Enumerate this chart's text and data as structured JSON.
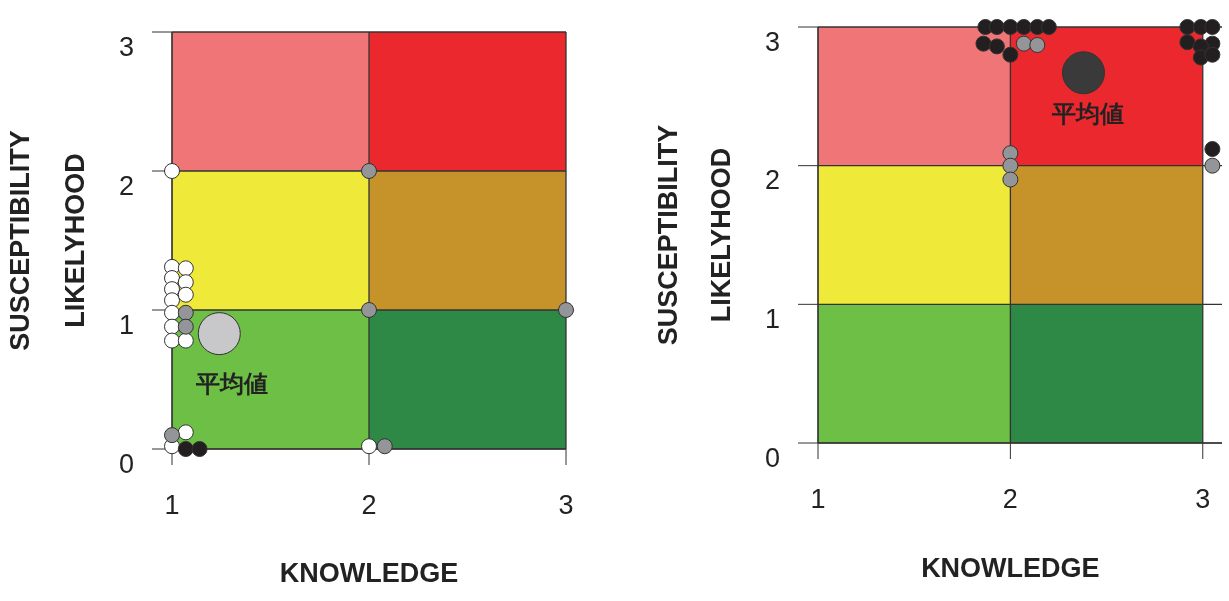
{
  "chart_data": [
    {
      "type": "scatter",
      "xlabel": "KNOWLEDGE",
      "ylabel": "SUSCEPTIBILITY\nLIKELYHOOD",
      "xlim": [
        1,
        3
      ],
      "xticks": [
        1,
        2,
        3
      ],
      "ylim": [
        0,
        3
      ],
      "yticks": [
        0,
        1,
        2,
        3
      ],
      "grid": true,
      "marker": "circle",
      "annotations": [
        "平均値"
      ],
      "series": [
        {
          "color": "#ffffff",
          "x": [
            1,
            1,
            1,
            1,
            1,
            1,
            1,
            1.07,
            1.07,
            1.07,
            1.07,
            1,
            1.07,
            1,
            2
          ],
          "values": [
            1.31,
            1.23,
            1.15,
            1.07,
            0.98,
            0.88,
            0.78,
            1.3,
            1.2,
            1.11,
            0.78,
            2,
            0.12,
            0.02,
            0.02
          ]
        },
        {
          "color": "#939598",
          "x": [
            1.07,
            1.07,
            1,
            2,
            2,
            3,
            2.08
          ],
          "values": [
            0.98,
            0.88,
            0.1,
            2,
            1,
            1,
            0.02
          ]
        },
        {
          "color": "#231f20",
          "x": [
            1.07,
            1.14
          ],
          "values": [
            0,
            0
          ]
        },
        {
          "type": "bubble",
          "color": "#c8c8ca",
          "x": [
            1.24
          ],
          "values": [
            0.83
          ],
          "sizes": [
            1
          ]
        }
      ]
    },
    {
      "type": "scatter",
      "xlabel": "KNOWLEDGE",
      "ylabel": "SUSCEPTIBILITY\nLIKELYHOOD",
      "xlim": [
        1,
        3.1
      ],
      "xticks": [
        1,
        2,
        3
      ],
      "ylim": [
        0,
        3
      ],
      "yticks": [
        0,
        1,
        2,
        3
      ],
      "grid": true,
      "marker": "circle",
      "annotations": [
        "平均値"
      ],
      "series": [
        {
          "color": "#231f20",
          "x": [
            1.87,
            1.93,
            2,
            2.07,
            2.14,
            2.2,
            1.86,
            1.93,
            2,
            2.92,
            2.99,
            3.05,
            2.92,
            3.05,
            2.99,
            2.99,
            3.05,
            3.05
          ],
          "values": [
            3,
            3,
            3,
            3,
            3,
            3,
            2.88,
            2.86,
            2.8,
            3,
            3,
            3,
            2.89,
            2.88,
            2.86,
            2.78,
            2.8,
            2.12
          ]
        },
        {
          "color": "#939598",
          "x": [
            2.07,
            2.14,
            2,
            2,
            2,
            3.05
          ],
          "values": [
            2.88,
            2.87,
            2.09,
            2,
            1.9,
            2
          ]
        },
        {
          "type": "bubble",
          "color": "#3a3a3a",
          "x": [
            2.38
          ],
          "values": [
            2.67
          ],
          "sizes": [
            1
          ]
        }
      ]
    }
  ]
}
